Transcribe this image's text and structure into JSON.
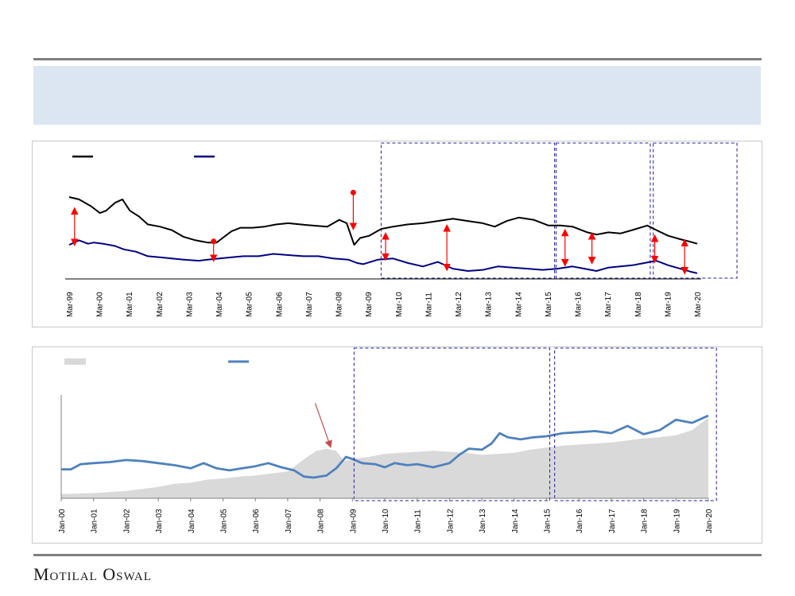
{
  "brand": {
    "name": "Motilal Oswal"
  },
  "colors": {
    "black_line": "#000000",
    "navy_line": "#000080",
    "blue_line": "#4f81bd",
    "area_fill": "#d9d9d9",
    "arrow_red": "#ff0000",
    "dashed_box": "#1f1f9f",
    "banner": "#dce6f2"
  },
  "chart_data": [
    {
      "type": "line",
      "title": "",
      "legend_position": "top-left",
      "x_tick_labels": [
        "Mar-99",
        "Mar-00",
        "Mar-01",
        "Mar-02",
        "Mar-03",
        "Mar-04",
        "Mar-05",
        "Mar-06",
        "Mar-07",
        "Mar-08",
        "Mar-09",
        "Mar-10",
        "Mar-11",
        "Mar-12",
        "Mar-13",
        "Mar-14",
        "Mar-15",
        "Mar-16",
        "Mar-17",
        "Mar-18",
        "Mar-19",
        "Mar-20"
      ],
      "x_range": [
        1999.17,
        2020.17
      ],
      "y_range": [
        0,
        100
      ],
      "grid": false,
      "series": [
        {
          "style": "black",
          "points": [
            [
              1999.17,
              72
            ],
            [
              1999.5,
              70
            ],
            [
              1999.9,
              64
            ],
            [
              2000.2,
              58
            ],
            [
              2000.4,
              60
            ],
            [
              2000.7,
              67
            ],
            [
              2000.95,
              70
            ],
            [
              2001.2,
              60
            ],
            [
              2001.5,
              55
            ],
            [
              2001.8,
              48
            ],
            [
              2002.2,
              46
            ],
            [
              2002.6,
              43
            ],
            [
              2003.0,
              37
            ],
            [
              2003.4,
              34
            ],
            [
              2003.8,
              32
            ],
            [
              2004.1,
              32
            ],
            [
              2004.3,
              36
            ],
            [
              2004.6,
              42
            ],
            [
              2004.9,
              45
            ],
            [
              2005.3,
              45
            ],
            [
              2005.7,
              46
            ],
            [
              2006.1,
              48
            ],
            [
              2006.5,
              49
            ],
            [
              2006.9,
              48
            ],
            [
              2007.3,
              47
            ],
            [
              2007.8,
              46
            ],
            [
              2008.2,
              52
            ],
            [
              2008.45,
              49
            ],
            [
              2008.7,
              30
            ],
            [
              2008.9,
              36
            ],
            [
              2009.2,
              38
            ],
            [
              2009.6,
              44
            ],
            [
              2010.0,
              46
            ],
            [
              2010.5,
              48
            ],
            [
              2011.0,
              49
            ],
            [
              2011.5,
              51
            ],
            [
              2012.0,
              53
            ],
            [
              2012.5,
              51
            ],
            [
              2013.0,
              49
            ],
            [
              2013.4,
              46
            ],
            [
              2013.8,
              51
            ],
            [
              2014.2,
              54
            ],
            [
              2014.7,
              52
            ],
            [
              2015.2,
              47
            ],
            [
              2015.6,
              47
            ],
            [
              2016.0,
              46
            ],
            [
              2016.5,
              41
            ],
            [
              2016.8,
              39
            ],
            [
              2017.2,
              41
            ],
            [
              2017.6,
              40
            ],
            [
              2018.0,
              43
            ],
            [
              2018.5,
              47
            ],
            [
              2018.8,
              43
            ],
            [
              2019.2,
              38
            ],
            [
              2019.6,
              35
            ],
            [
              2019.9,
              33
            ],
            [
              2020.17,
              31
            ]
          ]
        },
        {
          "style": "navy",
          "points": [
            [
              1999.17,
              30
            ],
            [
              1999.5,
              34
            ],
            [
              1999.8,
              31
            ],
            [
              2000.0,
              32
            ],
            [
              2000.3,
              31
            ],
            [
              2000.7,
              29
            ],
            [
              2001.0,
              26
            ],
            [
              2001.4,
              24
            ],
            [
              2001.8,
              20
            ],
            [
              2002.2,
              19
            ],
            [
              2002.6,
              18
            ],
            [
              2003.0,
              17
            ],
            [
              2003.5,
              16
            ],
            [
              2003.8,
              17
            ],
            [
              2004.2,
              18
            ],
            [
              2004.6,
              19
            ],
            [
              2005.0,
              20
            ],
            [
              2005.5,
              20
            ],
            [
              2006.0,
              22
            ],
            [
              2006.5,
              21
            ],
            [
              2007.0,
              20
            ],
            [
              2007.5,
              20
            ],
            [
              2008.0,
              18
            ],
            [
              2008.5,
              17
            ],
            [
              2008.8,
              14
            ],
            [
              2009.0,
              13
            ],
            [
              2009.5,
              17
            ],
            [
              2010.0,
              18
            ],
            [
              2010.5,
              14
            ],
            [
              2011.0,
              11
            ],
            [
              2011.5,
              15
            ],
            [
              2012.0,
              9
            ],
            [
              2012.5,
              7
            ],
            [
              2013.0,
              8
            ],
            [
              2013.5,
              11
            ],
            [
              2014.0,
              10
            ],
            [
              2014.5,
              9
            ],
            [
              2015.0,
              8
            ],
            [
              2015.5,
              9
            ],
            [
              2016.0,
              11
            ],
            [
              2016.4,
              9
            ],
            [
              2016.8,
              7
            ],
            [
              2017.2,
              10
            ],
            [
              2017.6,
              11
            ],
            [
              2018.0,
              12
            ],
            [
              2018.4,
              14
            ],
            [
              2018.8,
              16
            ],
            [
              2019.2,
              12
            ],
            [
              2019.6,
              9
            ],
            [
              2020.0,
              6
            ],
            [
              2020.17,
              5
            ]
          ]
        }
      ],
      "annotations": [
        {
          "kind": "double_arrow",
          "x": 1999.35,
          "y_top": 62,
          "y_bottom": 30
        },
        {
          "kind": "dot_arrow_down",
          "x": 2004.0,
          "y_top": 33,
          "y_bottom": 16
        },
        {
          "kind": "dot_arrow_down",
          "x": 2008.67,
          "y_top": 76,
          "y_bottom": 44
        },
        {
          "kind": "double_arrow",
          "x": 2009.75,
          "y_top": 40,
          "y_bottom": 17
        },
        {
          "kind": "double_arrow",
          "x": 2011.8,
          "y_top": 47,
          "y_bottom": 8
        },
        {
          "kind": "double_arrow",
          "x": 2015.75,
          "y_top": 43,
          "y_bottom": 12
        },
        {
          "kind": "double_arrow",
          "x": 2016.65,
          "y_top": 40,
          "y_bottom": 14
        },
        {
          "kind": "double_arrow",
          "x": 2018.75,
          "y_top": 38,
          "y_bottom": 15
        },
        {
          "kind": "double_arrow",
          "x": 2019.75,
          "y_top": 34,
          "y_bottom": 5
        }
      ],
      "highlight_boxes": [
        {
          "x0": 2009.6,
          "x1": 2015.4
        },
        {
          "x0": 2015.45,
          "x1": 2018.6
        },
        {
          "x0": 2018.7,
          "x1": 2021.5
        }
      ]
    },
    {
      "type": "area",
      "title": "",
      "legend_position": "top-left",
      "x_tick_labels": [
        "Jan-00",
        "Jan-01",
        "Jan-02",
        "Jan-03",
        "Jan-04",
        "Jan-05",
        "Jan-06",
        "Jan-07",
        "Jan-08",
        "Jan-09",
        "Jan-10",
        "Jan-11",
        "Jan-12",
        "Jan-13",
        "Jan-14",
        "Jan-15",
        "Jan-16",
        "Jan-17",
        "Jan-18",
        "Jan-19",
        "Jan-20"
      ],
      "x_range": [
        2000.0,
        2020.0
      ],
      "y_range": [
        0,
        100
      ],
      "grid": false,
      "series": [
        {
          "style": "area",
          "points": [
            [
              2000.0,
              4
            ],
            [
              2001.0,
              5
            ],
            [
              2002.0,
              7
            ],
            [
              2003.0,
              11
            ],
            [
              2003.5,
              14
            ],
            [
              2004.0,
              15
            ],
            [
              2004.5,
              18
            ],
            [
              2005.0,
              19
            ],
            [
              2005.5,
              21
            ],
            [
              2006.0,
              22
            ],
            [
              2006.5,
              24
            ],
            [
              2007.0,
              26
            ],
            [
              2007.3,
              33
            ],
            [
              2007.6,
              40
            ],
            [
              2007.9,
              46
            ],
            [
              2008.2,
              48
            ],
            [
              2008.5,
              46
            ],
            [
              2008.75,
              36
            ],
            [
              2009.0,
              38
            ],
            [
              2009.5,
              40
            ],
            [
              2010.0,
              43
            ],
            [
              2010.5,
              44
            ],
            [
              2011.0,
              45
            ],
            [
              2011.5,
              46
            ],
            [
              2012.0,
              45
            ],
            [
              2012.5,
              44
            ],
            [
              2013.0,
              42
            ],
            [
              2013.5,
              43
            ],
            [
              2014.0,
              44
            ],
            [
              2014.5,
              47
            ],
            [
              2015.0,
              49
            ],
            [
              2015.5,
              51
            ],
            [
              2016.0,
              52
            ],
            [
              2016.5,
              53
            ],
            [
              2017.0,
              54
            ],
            [
              2017.5,
              56
            ],
            [
              2018.0,
              58
            ],
            [
              2018.5,
              59
            ],
            [
              2019.0,
              61
            ],
            [
              2019.5,
              66
            ],
            [
              2020.0,
              78
            ]
          ]
        },
        {
          "style": "blue",
          "points": [
            [
              2000.0,
              28
            ],
            [
              2000.3,
              28
            ],
            [
              2000.6,
              33
            ],
            [
              2001.0,
              34
            ],
            [
              2001.5,
              35
            ],
            [
              2002.0,
              37
            ],
            [
              2002.5,
              36
            ],
            [
              2003.0,
              34
            ],
            [
              2003.5,
              32
            ],
            [
              2004.0,
              29
            ],
            [
              2004.4,
              34
            ],
            [
              2004.8,
              29
            ],
            [
              2005.2,
              27
            ],
            [
              2005.6,
              29
            ],
            [
              2006.0,
              31
            ],
            [
              2006.4,
              34
            ],
            [
              2006.8,
              30
            ],
            [
              2007.2,
              27
            ],
            [
              2007.5,
              21
            ],
            [
              2007.8,
              20
            ],
            [
              2008.2,
              22
            ],
            [
              2008.5,
              29
            ],
            [
              2008.8,
              40
            ],
            [
              2009.0,
              38
            ],
            [
              2009.3,
              34
            ],
            [
              2009.7,
              33
            ],
            [
              2010.0,
              30
            ],
            [
              2010.3,
              34
            ],
            [
              2010.7,
              32
            ],
            [
              2011.0,
              33
            ],
            [
              2011.5,
              30
            ],
            [
              2012.0,
              34
            ],
            [
              2012.3,
              42
            ],
            [
              2012.6,
              48
            ],
            [
              2013.0,
              47
            ],
            [
              2013.3,
              53
            ],
            [
              2013.55,
              63
            ],
            [
              2013.8,
              59
            ],
            [
              2014.2,
              57
            ],
            [
              2014.6,
              59
            ],
            [
              2015.0,
              60
            ],
            [
              2015.5,
              63
            ],
            [
              2016.0,
              64
            ],
            [
              2016.5,
              65
            ],
            [
              2017.0,
              63
            ],
            [
              2017.5,
              70
            ],
            [
              2018.0,
              62
            ],
            [
              2018.5,
              66
            ],
            [
              2019.0,
              76
            ],
            [
              2019.5,
              73
            ],
            [
              2020.0,
              80
            ]
          ]
        }
      ],
      "annotations": [
        {
          "kind": "arrow",
          "x_from": 2007.85,
          "y_from": 92,
          "x_to": 2008.3,
          "y_to": 52
        }
      ],
      "highlight_boxes": [
        {
          "x0": 2009.05,
          "x1": 2015.1
        },
        {
          "x0": 2015.25,
          "x1": 2020.25
        }
      ]
    }
  ]
}
